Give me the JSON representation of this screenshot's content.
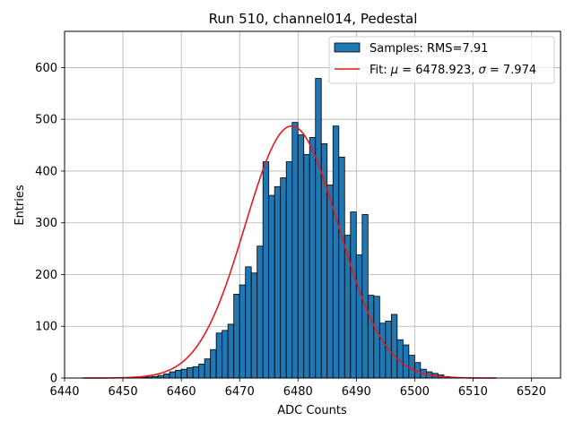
{
  "chart_data": {
    "type": "bar",
    "title": "Run 510, channel014, Pedestal",
    "xlabel": "ADC Counts",
    "ylabel": "Entries",
    "xlim": [
      6440,
      6525
    ],
    "ylim": [
      0,
      670
    ],
    "xticks": [
      6440,
      6450,
      6460,
      6470,
      6480,
      6490,
      6500,
      6510,
      6520
    ],
    "yticks": [
      0,
      100,
      200,
      300,
      400,
      500,
      600
    ],
    "grid": true,
    "legend_position": "top-right",
    "histogram": {
      "name": "Samples: RMS=7.91",
      "color": "#1f77b4",
      "edgecolor": "#000000",
      "bin_start": 6443,
      "bin_width": 1,
      "values": [
        0,
        0,
        0,
        0,
        0,
        0,
        0,
        0,
        0,
        0,
        1,
        2,
        3,
        5,
        8,
        12,
        15,
        17,
        20,
        22,
        27,
        37,
        55,
        87,
        92,
        104,
        162,
        180,
        215,
        203,
        255,
        418,
        353,
        370,
        387,
        418,
        494,
        470,
        432,
        465,
        579,
        453,
        373,
        487,
        427,
        276,
        321,
        238,
        316,
        160,
        158,
        106,
        110,
        123,
        74,
        64,
        44,
        30,
        17,
        12,
        9,
        6,
        3,
        2,
        1,
        1,
        0,
        0,
        0,
        0,
        0,
        0,
        0,
        0,
        0,
        0,
        0,
        0
      ]
    },
    "fit": {
      "name": "Fit: μ = 6478.923, σ = 7.974",
      "color": "#e31a1c",
      "mu": 6478.923,
      "sigma": 7.974,
      "amplitude": 487,
      "x_range": [
        6443,
        6514
      ]
    }
  },
  "legend": {
    "samples_prefix": "Samples: RMS=7.91",
    "fit_prefix": "Fit: ",
    "mu_symbol": "μ",
    "fit_mid": " = 6478.923, ",
    "sigma_symbol": "σ",
    "fit_end": " = 7.974"
  }
}
